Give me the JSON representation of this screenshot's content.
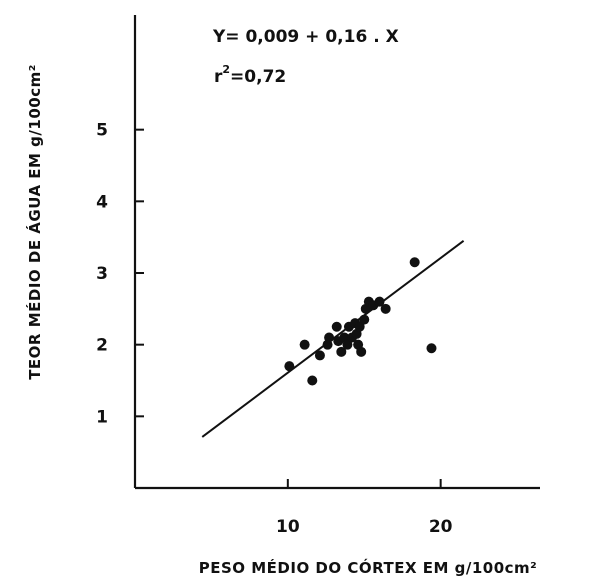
{
  "chart_data": {
    "type": "scatter",
    "xlabel": "PESO MÉDIO DO CÓRTEX EM g/100cm²",
    "ylabel": "TEOR MÉDIO DE ÁGUA EM g/100cm²",
    "xlim": [
      0,
      26.5
    ],
    "ylim": [
      0,
      6.6
    ],
    "x_ticks": [
      {
        "value": 10,
        "label": "10"
      },
      {
        "value": 20,
        "label": "20"
      }
    ],
    "y_ticks": [
      {
        "value": 1,
        "label": "1"
      },
      {
        "value": 2,
        "label": "2"
      },
      {
        "value": 3,
        "label": "3"
      },
      {
        "value": 4,
        "label": "4"
      },
      {
        "value": 5,
        "label": "5"
      }
    ],
    "grid": false,
    "annotations": {
      "equation": "Y= 0,009 + 0,16 . X",
      "r2_prefix": "r",
      "r2_exponent": "2",
      "r2_value": "=0,72"
    },
    "regression": {
      "intercept": 0.009,
      "slope": 0.16,
      "x_range": [
        4.4,
        21.5
      ]
    },
    "points": [
      {
        "x": 10.1,
        "y": 1.7
      },
      {
        "x": 11.1,
        "y": 2.0
      },
      {
        "x": 11.6,
        "y": 1.5
      },
      {
        "x": 12.1,
        "y": 1.85
      },
      {
        "x": 12.6,
        "y": 2.0
      },
      {
        "x": 12.7,
        "y": 2.1
      },
      {
        "x": 13.2,
        "y": 2.25
      },
      {
        "x": 13.3,
        "y": 2.05
      },
      {
        "x": 13.5,
        "y": 1.9
      },
      {
        "x": 13.7,
        "y": 2.1
      },
      {
        "x": 13.9,
        "y": 2.0
      },
      {
        "x": 14.0,
        "y": 2.25
      },
      {
        "x": 14.2,
        "y": 2.1
      },
      {
        "x": 14.4,
        "y": 2.3
      },
      {
        "x": 14.5,
        "y": 2.15
      },
      {
        "x": 14.6,
        "y": 2.0
      },
      {
        "x": 14.7,
        "y": 2.25
      },
      {
        "x": 14.8,
        "y": 1.9
      },
      {
        "x": 15.0,
        "y": 2.35
      },
      {
        "x": 15.1,
        "y": 2.5
      },
      {
        "x": 15.3,
        "y": 2.6
      },
      {
        "x": 15.6,
        "y": 2.55
      },
      {
        "x": 16.0,
        "y": 2.6
      },
      {
        "x": 16.4,
        "y": 2.5
      },
      {
        "x": 18.3,
        "y": 3.15
      },
      {
        "x": 19.4,
        "y": 1.95
      }
    ]
  }
}
